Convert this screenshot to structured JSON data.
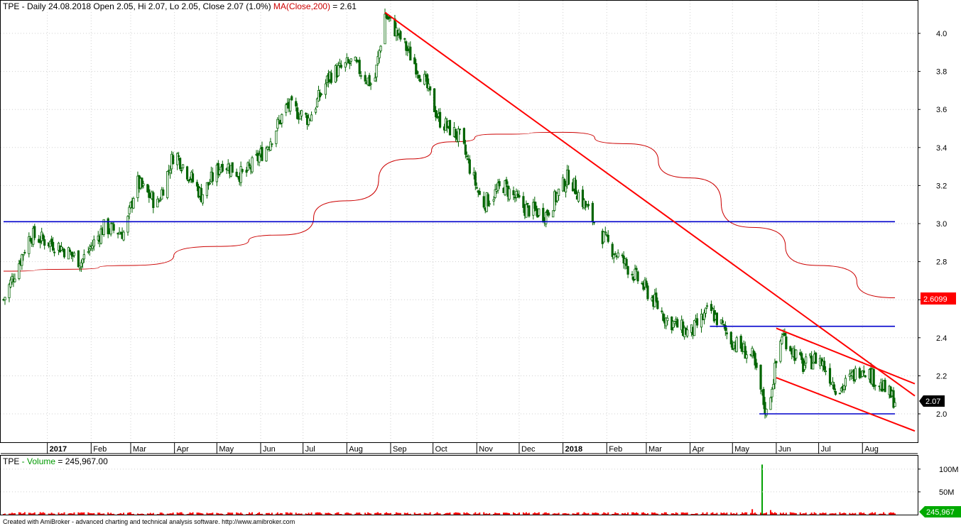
{
  "header": {
    "symbol": "TPE",
    "info": " - Daily 24.08.2018 Open 2.05, Hi 2.07, Lo 2.05, Close 2.07 (1.0%) ",
    "ma_label": "MA(Close,200)",
    "ma_value": " = 2.61"
  },
  "volume_header": {
    "symbol": "TPE",
    "label": " - Volume",
    "value": " = 245,967.00"
  },
  "footer": "Created with AmiBroker - advanced charting and technical analysis software. http://www.amibroker.com",
  "badges": {
    "ma": "2.6099",
    "close": "2.07",
    "volume": "245,967"
  },
  "colors": {
    "trendline": "#ff0000",
    "ma": "#cc0000",
    "level": "#0000cc",
    "candles": "#006400",
    "volume": "#ff0000",
    "volume_spike": "#00a000"
  },
  "chart_data": [
    {
      "type": "candlestick",
      "title": "TPE Daily",
      "x_tick_labels": [
        "2017",
        "Feb",
        "Mar",
        "Apr",
        "May",
        "Jun",
        "Jul",
        "Aug",
        "Sep",
        "Oct",
        "Nov",
        "Dec",
        "2018",
        "Feb",
        "Mar",
        "Apr",
        "May",
        "Jun",
        "Jul",
        "Aug"
      ],
      "y_ticks": [
        "2.0",
        "2.2",
        "2.4",
        "2.6",
        "2.8",
        "3.0",
        "3.2",
        "3.4",
        "3.6",
        "3.8",
        "4.0"
      ],
      "ylim": [
        1.85,
        4.13
      ],
      "grid": true,
      "price_path": [
        {
          "date": "2016-12-01",
          "close": 2.6
        },
        {
          "date": "2016-12-20",
          "close": 2.94
        },
        {
          "date": "2017-01-10",
          "close": 2.88
        },
        {
          "date": "2017-01-25",
          "close": 2.8
        },
        {
          "date": "2017-02-10",
          "close": 2.98
        },
        {
          "date": "2017-02-25",
          "close": 2.95
        },
        {
          "date": "2017-03-05",
          "close": 3.22
        },
        {
          "date": "2017-03-20",
          "close": 3.1
        },
        {
          "date": "2017-04-01",
          "close": 3.38
        },
        {
          "date": "2017-04-20",
          "close": 3.15
        },
        {
          "date": "2017-05-05",
          "close": 3.32
        },
        {
          "date": "2017-05-20",
          "close": 3.25
        },
        {
          "date": "2017-06-05",
          "close": 3.4
        },
        {
          "date": "2017-06-20",
          "close": 3.62
        },
        {
          "date": "2017-07-05",
          "close": 3.55
        },
        {
          "date": "2017-07-20",
          "close": 3.78
        },
        {
          "date": "2017-08-05",
          "close": 3.85
        },
        {
          "date": "2017-08-20",
          "close": 3.72
        },
        {
          "date": "2017-08-28",
          "close": 4.1
        },
        {
          "date": "2017-09-10",
          "close": 3.95
        },
        {
          "date": "2017-09-25",
          "close": 3.75
        },
        {
          "date": "2017-10-05",
          "close": 3.55
        },
        {
          "date": "2017-10-20",
          "close": 3.45
        },
        {
          "date": "2017-11-05",
          "close": 3.1
        },
        {
          "date": "2017-11-20",
          "close": 3.2
        },
        {
          "date": "2017-12-05",
          "close": 3.08
        },
        {
          "date": "2017-12-20",
          "close": 3.05
        },
        {
          "date": "2018-01-05",
          "close": 3.25
        },
        {
          "date": "2018-01-20",
          "close": 3.05
        },
        {
          "date": "2018-02-01",
          "close": 2.9
        },
        {
          "date": "2018-02-15",
          "close": 2.78
        },
        {
          "date": "2018-03-01",
          "close": 2.65
        },
        {
          "date": "2018-03-15",
          "close": 2.5
        },
        {
          "date": "2018-04-01",
          "close": 2.42
        },
        {
          "date": "2018-04-15",
          "close": 2.55
        },
        {
          "date": "2018-05-01",
          "close": 2.38
        },
        {
          "date": "2018-05-15",
          "close": 2.3
        },
        {
          "date": "2018-05-25",
          "close": 2.0
        },
        {
          "date": "2018-06-05",
          "close": 2.42
        },
        {
          "date": "2018-06-20",
          "close": 2.25
        },
        {
          "date": "2018-07-01",
          "close": 2.3
        },
        {
          "date": "2018-07-15",
          "close": 2.12
        },
        {
          "date": "2018-08-01",
          "close": 2.25
        },
        {
          "date": "2018-08-24",
          "close": 2.07
        }
      ],
      "ma200": [
        {
          "date": "2016-12-01",
          "value": 2.75
        },
        {
          "date": "2017-01-15",
          "value": 2.76
        },
        {
          "date": "2017-03-01",
          "value": 2.78
        },
        {
          "date": "2017-05-01",
          "value": 2.88
        },
        {
          "date": "2017-06-15",
          "value": 2.94
        },
        {
          "date": "2017-08-01",
          "value": 3.12
        },
        {
          "date": "2017-09-15",
          "value": 3.34
        },
        {
          "date": "2017-10-15",
          "value": 3.43
        },
        {
          "date": "2017-11-15",
          "value": 3.47
        },
        {
          "date": "2018-01-01",
          "value": 3.48
        },
        {
          "date": "2018-02-15",
          "value": 3.42
        },
        {
          "date": "2018-04-01",
          "value": 3.24
        },
        {
          "date": "2018-05-15",
          "value": 2.98
        },
        {
          "date": "2018-07-01",
          "value": 2.78
        },
        {
          "date": "2018-08-24",
          "value": 2.61
        }
      ],
      "horizontal_levels": [
        {
          "value": 3.01,
          "from": "2016-12-01",
          "to": "2018-08-24"
        },
        {
          "value": 2.46,
          "from": "2018-04-15",
          "to": "2018-08-24"
        },
        {
          "value": 2.0,
          "from": "2018-05-20",
          "to": "2018-08-24"
        }
      ],
      "trendlines": [
        {
          "from": {
            "date": "2017-08-28",
            "value": 4.11
          },
          "to": {
            "date": "2018-08-24",
            "value": 2.17
          }
        },
        {
          "from": {
            "date": "2018-06-01",
            "value": 2.45
          },
          "to": {
            "date": "2018-08-24",
            "value": 2.2
          }
        },
        {
          "from": {
            "date": "2018-06-01",
            "value": 2.19
          },
          "to": {
            "date": "2018-08-24",
            "value": 1.95
          }
        }
      ]
    },
    {
      "type": "bar",
      "title": "TPE - Volume",
      "y_ticks": [
        "50M",
        "100M"
      ],
      "ylim": [
        0,
        120000000
      ],
      "typical_volume": 3000000,
      "spikes": [
        {
          "date": "2018-05-22",
          "value": 110000000
        },
        {
          "date": "2018-05-15",
          "value": 12000000
        },
        {
          "date": "2018-05-28",
          "value": 10000000
        },
        {
          "date": "2017-02-05",
          "value": 8000000
        },
        {
          "date": "2017-01-01",
          "value": 7000000
        }
      ],
      "last_value": 245967
    }
  ]
}
